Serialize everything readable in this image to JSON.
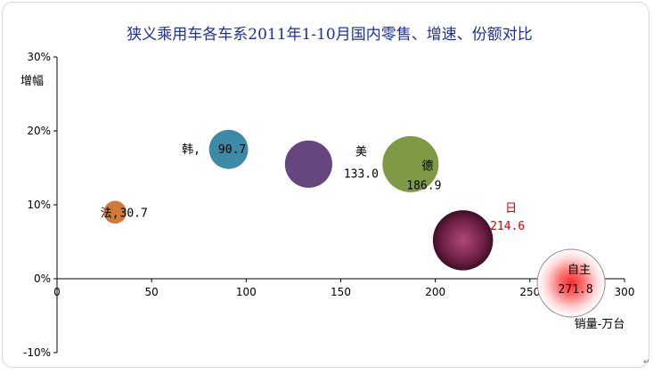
{
  "chart_data": {
    "type": "bubble",
    "title": "狭义乘用车各车系2011年1-10月国内零售、增速、份额对比",
    "xlabel": "销量-万台",
    "ylabel": "增幅",
    "xlim": [
      0,
      300
    ],
    "ylim": [
      -10,
      30
    ],
    "x_ticks": [
      "0",
      "50",
      "100",
      "150",
      "200",
      "250",
      "300"
    ],
    "y_ticks": [
      "-10%",
      "0%",
      "10%",
      "20%",
      "30%"
    ],
    "grid": false,
    "legend": "none",
    "points": [
      {
        "name": "法",
        "value_label": "30.7",
        "x": 30.7,
        "y": 9.0,
        "size": 30.7,
        "color": "#d07a3a"
      },
      {
        "name": "韩",
        "value_label": "90.7",
        "x": 90.7,
        "y": 17.5,
        "size": 90.7,
        "color": "#3c8aa6"
      },
      {
        "name": "美",
        "value_label": "133.0",
        "x": 133.0,
        "y": 15.5,
        "size": 133.0,
        "color": "#65467f"
      },
      {
        "name": "德",
        "value_label": "186.9",
        "x": 186.9,
        "y": 15.5,
        "size": 186.9,
        "color": "#7e9a45"
      },
      {
        "name": "日",
        "value_label": "214.6",
        "x": 214.6,
        "y": 5.2,
        "size": 214.6,
        "color": "#8a2a58"
      },
      {
        "name": "自主",
        "value_label": "271.8",
        "x": 271.8,
        "y": -0.6,
        "size": 271.8,
        "color": "#ff5050"
      }
    ]
  },
  "corner_mark": "↵"
}
